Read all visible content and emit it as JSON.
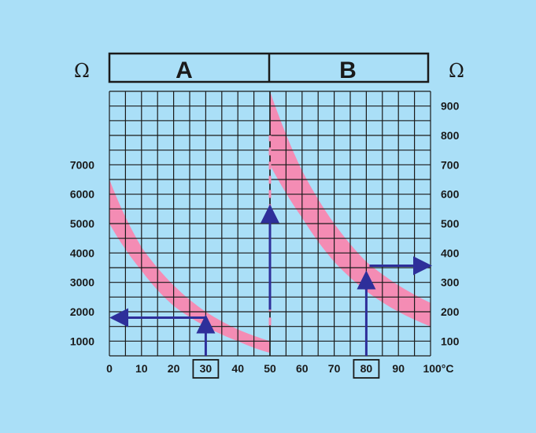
{
  "chart_data": {
    "type": "area",
    "panels": [
      {
        "label": "A",
        "unit_label": "Ω",
        "x_ticks": [
          "0",
          "10",
          "20",
          "30",
          "40",
          "50"
        ],
        "x_range": [
          0,
          50
        ],
        "y_ticks": [
          "1000",
          "2000",
          "3000",
          "4000",
          "5000",
          "6000",
          "7000"
        ],
        "y_range": [
          500,
          9500
        ],
        "band": {
          "x": [
            0,
            10,
            20,
            30,
            40,
            50
          ],
          "upper": [
            6500,
            4200,
            2900,
            2000,
            1400,
            1000
          ],
          "lower": [
            5000,
            3400,
            2200,
            1500,
            1000,
            600
          ]
        },
        "reading": {
          "x": 30,
          "y": 1800
        }
      },
      {
        "label": "B",
        "unit_label": "Ω",
        "x_ticks": [
          "50",
          "60",
          "70",
          "80",
          "90",
          "100°C"
        ],
        "x_range": [
          50,
          100
        ],
        "y_ticks": [
          "100",
          "200",
          "300",
          "400",
          "500",
          "600",
          "700",
          "800",
          "900"
        ],
        "y_range": [
          50,
          950
        ],
        "band": {
          "x": [
            50,
            60,
            70,
            80,
            90,
            100
          ],
          "upper": [
            950,
            680,
            500,
            370,
            290,
            230
          ],
          "lower": [
            700,
            520,
            370,
            270,
            200,
            150
          ]
        },
        "reading": {
          "x": 80,
          "y": 330
        }
      }
    ],
    "highlighted_x_ticks": [
      "30",
      "80"
    ]
  },
  "colors": {
    "background": "#aadff7",
    "band": "#f48cb4",
    "arrow": "#2e2f9a",
    "grid": "#1a1a1a"
  }
}
